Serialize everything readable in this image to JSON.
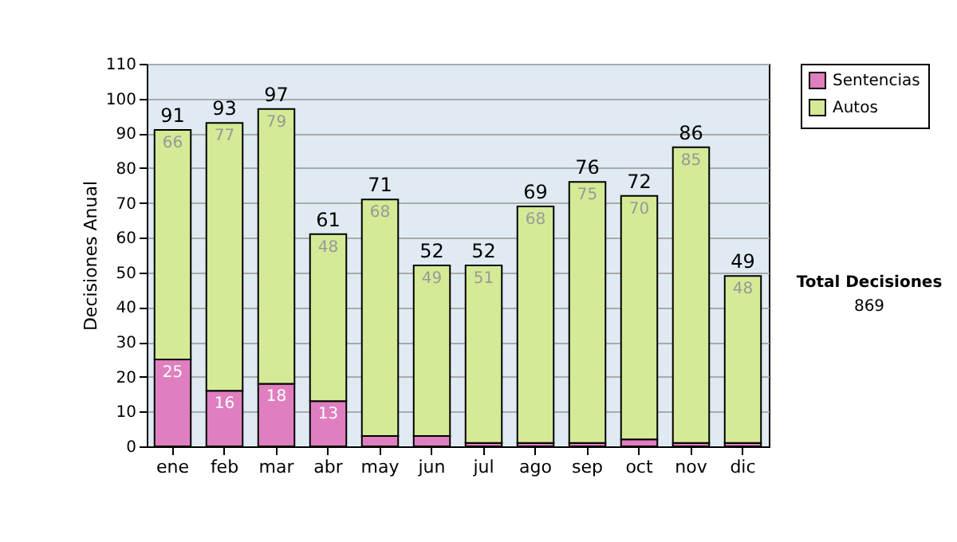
{
  "chart_data": {
    "type": "bar",
    "ylabel": "Decisiones Anual",
    "categories": [
      "ene",
      "feb",
      "mar",
      "abr",
      "may",
      "jun",
      "jul",
      "ago",
      "sep",
      "oct",
      "nov",
      "dic"
    ],
    "stacked": true,
    "series": [
      {
        "name": "Sentencias",
        "color": "#e07fc0",
        "values": [
          25,
          16,
          18,
          13,
          3,
          3,
          1,
          1,
          1,
          2,
          1,
          1
        ],
        "value_labels": [
          "25",
          "16",
          "18",
          "13",
          null,
          null,
          null,
          null,
          null,
          null,
          null,
          null
        ]
      },
      {
        "name": "Autos",
        "color": "#d4ea96",
        "values": [
          66,
          77,
          79,
          48,
          68,
          49,
          51,
          68,
          75,
          70,
          85,
          48
        ],
        "value_labels": [
          "66",
          "77",
          "79",
          "48",
          "68",
          "49",
          "51",
          "68",
          "75",
          "70",
          "85",
          "48"
        ]
      }
    ],
    "totals": [
      "91",
      "93",
      "97",
      "61",
      "71",
      "52",
      "52",
      "69",
      "76",
      "72",
      "86",
      "49"
    ],
    "ylim": [
      0,
      110
    ],
    "yticks": [
      0,
      10,
      20,
      30,
      40,
      50,
      60,
      70,
      80,
      90,
      100,
      110
    ],
    "grid": "y",
    "legend": "right",
    "annotations": [
      "Total Decisiones",
      "869"
    ]
  }
}
